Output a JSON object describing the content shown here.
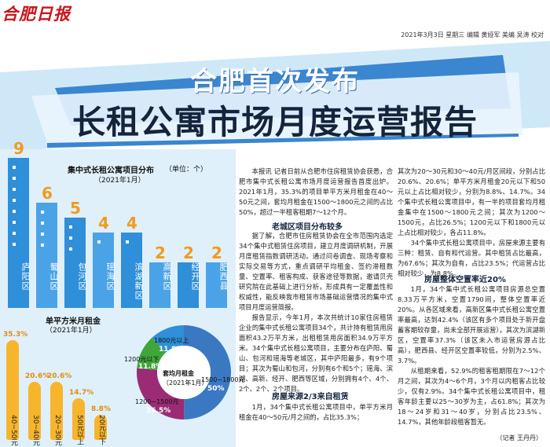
{
  "masthead": {
    "logo": "合肥日报",
    "dateline": "2021年3月3日 星期三 编辑 黄娅军 美编 吴涛 校对"
  },
  "headline": {
    "line1": "合肥首次发布",
    "line2": "长租公寓市场月度运营报告"
  },
  "bar_chart": {
    "title": "集中式长租公寓项目分布",
    "unit": "（单位：个）",
    "subtitle": "（2021年1月）",
    "categories": [
      "庐阳区",
      "蜀山区",
      "包河区",
      "瑶海区",
      "滨湖新区",
      "高新区",
      "经开区",
      "肥西县"
    ],
    "values": [
      9,
      6,
      5,
      4,
      4,
      2,
      2,
      2
    ]
  },
  "rent_chart": {
    "title": "单平方米月租金",
    "subtitle": "（2021年1月）",
    "categories": [
      "40~50元",
      "30~40元",
      "20~30元",
      "50元以上",
      "20元以下"
    ],
    "labels": [
      "35.3%",
      "20.6%",
      "20.6%",
      "14.7%",
      "8.8%"
    ],
    "values": [
      35.3,
      20.6,
      20.6,
      14.7,
      8.8
    ]
  },
  "donut_chart": {
    "title": "套均月租金",
    "subtitle": "（2021年1月）",
    "slices": [
      {
        "label": "1500~1800元",
        "pct": "50%",
        "value": 50,
        "color": "#3a78c2"
      },
      {
        "label": "1200~1500元",
        "pct": "26.5%",
        "value": 26.5,
        "color": "#9b2b74"
      },
      {
        "label": "1200元以下",
        "pct": "11.8%",
        "value": 11.8,
        "color": "#3fa63a"
      },
      {
        "label": "1800元以上",
        "pct": "11.8%",
        "value": 11.8,
        "color": "#2f8fd8"
      }
    ]
  },
  "article": {
    "col1_top": "本报讯 记者日前从合肥市住房租赁协会获悉，合肥市集中式长租公寓市场月度运营报告首度出炉。2021年1月，35.3%的项目单平方米月租金在40～50元之间，套均月租金在1500～1800元之间的占比50%，超过一半租客租期7～12个月。",
    "sub1": "老城区项目分布较多",
    "col1_mid": "据了解，合肥市住房租赁协会在全市范围内选定34个集中式租赁住房项目，建立月度调研机制，开展月度租赁指数调研活动。通过问卷调查、现场考察和实际交易等方式，重点调研平均租金、签约滞租数量、空置率、租客构成、获客途径等数据，邀请贝壳研究院在此基础上进行分析，形成具有一定覆盖性和权威性，能反映我市租赁市场基础运营情况的集中式项目月度运营简报。",
    "col1_bot": "报告显示，今年1月，本次共统计10家住房租赁企业的集中式长租公寓项目34个，共计持有租赁用房面积43.2万平方米，出租租赁用房面积34.9万平方米。34个集中式长租公寓项目，主要分布在庐阳、蜀山、包河和瑶海等老城区，其中庐阳最多，有9个项目；其次为蜀山和包河，分别有6个和5个；瑶海、滨湖、高新、经开、肥西等区域，分别拥有4个、4个、2个、2个、2个项目。",
    "sub2": "房屋来源2/3来自租赁",
    "col1_end": "1月，34个集中式长租公寓项目中，单平方米月租金在40～50元/月之间的，占比35.3%；",
    "col2_top": "其次为20～30元和30～40元/月区间段，分别占比20.6%、20.6%；单平方米月租金20元以下和50元以上占比相对较少，分别为8.8%、14.7%。34个集中式长租公寓项目中，有一半的项目套均月租金集中在1500～1800元之间；其次为1200～1500元，占比26.5%；1200元以下和1800元以上占比相对较少，各占11.8%。",
    "col2_p2": "34个集中式长租公寓项目中，房屋来源主要有三种：租赁、自有和代运营。其中租赁占比最高，为67.6%；其次为自有，占比23.5%；代运营占比相对较少，为8.8%。",
    "sub3": "房屋整体空置率近20%",
    "col2_p3": "1月，34个集中式长租公寓项目房源总空置8.33万平方米，空置1790间，整体空置率近20%。从各区域来看，高新区集中式长租公寓空置率最高，达到42.4%（该区有多个项目处于新开盘蓄客期较存量，尚未全部开展运营），其次为滨湖新区，空置率37.3%（该区未入市运营房源占比高），肥西县、经开区空置率较低，分别为2.5%、3.7%。",
    "col2_p4": "从租期来看，52.9%的租客租期限在7～12个月之间，其次为4～6个月，3个月以内租客占比较少，仅有2.9%。34个集中式长租公寓项目中，租客年龄主要以25～30岁为主，占61.8%；其次为18～24岁和31～40岁，分别占比23.5%、14.7%，其他年龄段租客暂无。",
    "byline": "（记者 王丹丹）"
  }
}
